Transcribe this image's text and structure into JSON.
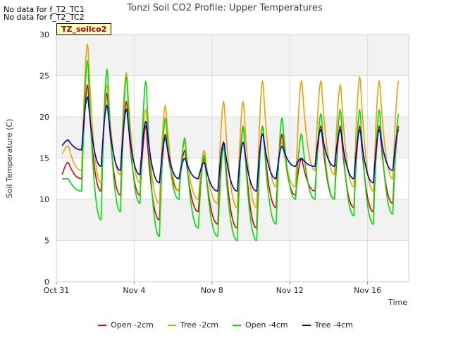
{
  "messages": [
    "No data for f_T2_TC1",
    "No data for f_T2_TC2"
  ],
  "badge": "TZ_soilco2",
  "chart_data": {
    "type": "line",
    "title": "Tonzi Soil CO2 Profile: Upper Temperatures",
    "xlabel": "Time",
    "ylabel": "Soil Temperature (C)",
    "ylim": [
      0,
      30
    ],
    "yticks": [
      0,
      5,
      10,
      15,
      20,
      25,
      30
    ],
    "xlim": [
      0,
      18
    ],
    "xticks": [
      {
        "day": 0,
        "label": "Oct 31"
      },
      {
        "day": 4,
        "label": "Nov 4"
      },
      {
        "day": 8,
        "label": "Nov 8"
      },
      {
        "day": 12,
        "label": "Nov 12"
      },
      {
        "day": 16,
        "label": "Nov 16"
      }
    ],
    "legend_position": "bottom",
    "series": [
      {
        "name": "Open -2cm",
        "color": "#e00000",
        "min": [
          13,
          12.5,
          11,
          10.5,
          10.5,
          7.5,
          11,
          8.5,
          7,
          6.5,
          6.5,
          9,
          10.5,
          11,
          10,
          9,
          8.5,
          9.5
        ],
        "max": [
          14.5,
          24,
          23,
          22,
          19,
          18,
          16,
          15,
          17,
          19,
          19,
          18,
          15,
          19,
          19,
          19,
          19,
          19
        ]
      },
      {
        "name": "Tree -2cm",
        "color": "#f0a000",
        "min": [
          15.5,
          13.5,
          12,
          13,
          12,
          9.5,
          11,
          10,
          9.5,
          9,
          9,
          11.5,
          11.5,
          13.5,
          13,
          11.5,
          11,
          12.5
        ],
        "max": [
          16.5,
          29,
          24,
          25.5,
          21,
          21.5,
          17,
          16,
          22,
          22,
          24.5,
          17,
          24.5,
          24.5,
          24,
          25,
          24.5,
          24.5
        ]
      },
      {
        "name": "Open -4cm",
        "color": "#00e000",
        "min": [
          12.5,
          11,
          7.5,
          8.5,
          9.5,
          5.5,
          10,
          6.5,
          5.5,
          5,
          5,
          7,
          10,
          10,
          10,
          8,
          7,
          8.2
        ],
        "max": [
          12.5,
          27,
          26,
          25,
          24.5,
          20,
          17.5,
          15.5,
          16.5,
          19,
          19,
          20,
          18,
          20.5,
          21,
          21,
          21,
          20.5
        ]
      },
      {
        "name": "Tree -4cm",
        "color": "#0000c0",
        "min": [
          16.5,
          16,
          14,
          13.5,
          13,
          12,
          12.5,
          12.5,
          11,
          11,
          11,
          12.5,
          14,
          14,
          14,
          12.5,
          12,
          13.5
        ],
        "max": [
          17.2,
          22.5,
          21.5,
          21,
          19.5,
          17.5,
          15,
          14.5,
          17,
          17,
          18,
          16.5,
          15,
          18.5,
          18.5,
          18.5,
          18.5,
          18.5
        ]
      }
    ]
  }
}
